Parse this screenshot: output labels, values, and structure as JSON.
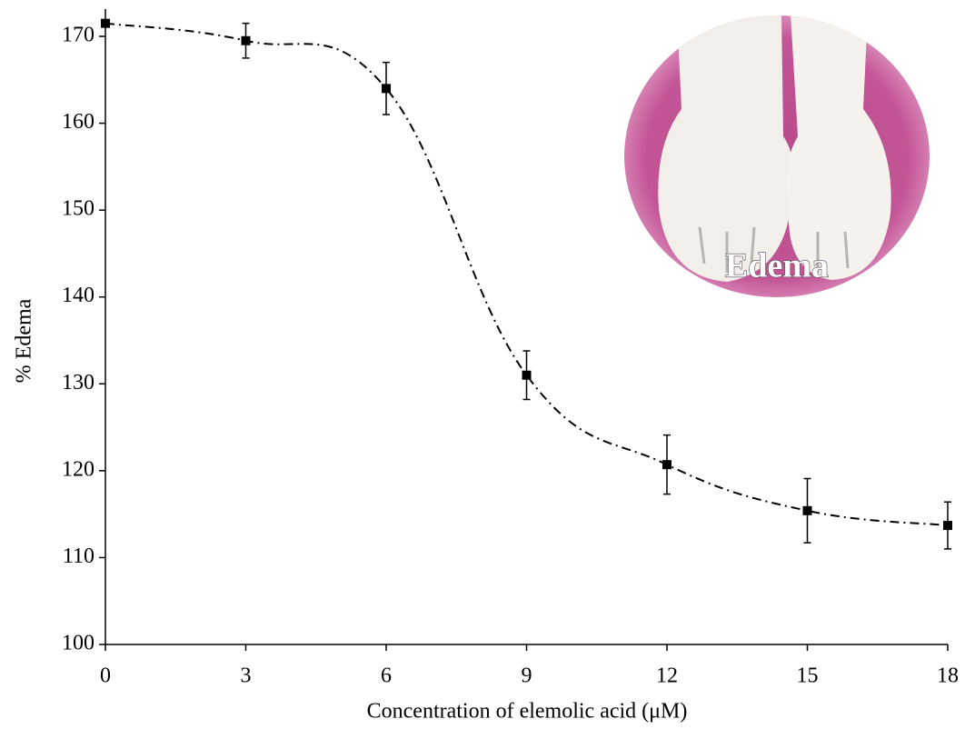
{
  "chart_data": {
    "type": "line",
    "x_label": "Concentration of elemolic acid (μM)",
    "y_label": "% Edema",
    "inset_label": "Edema",
    "x": [
      0,
      3,
      6,
      9,
      12,
      15,
      18
    ],
    "values": [
      171.5,
      169.5,
      164,
      131,
      120.7,
      115.4,
      113.7
    ],
    "errors": [
      0,
      2,
      3,
      2.8,
      3.4,
      3.7,
      2.7
    ],
    "color": "#000000",
    "xlim": [
      0,
      18
    ],
    "xticks": [
      0,
      3,
      6,
      9,
      12,
      15,
      18
    ],
    "ylim": [
      100,
      170
    ],
    "yticks": [
      100,
      110,
      120,
      130,
      140,
      150,
      160,
      170
    ],
    "grid": false
  }
}
